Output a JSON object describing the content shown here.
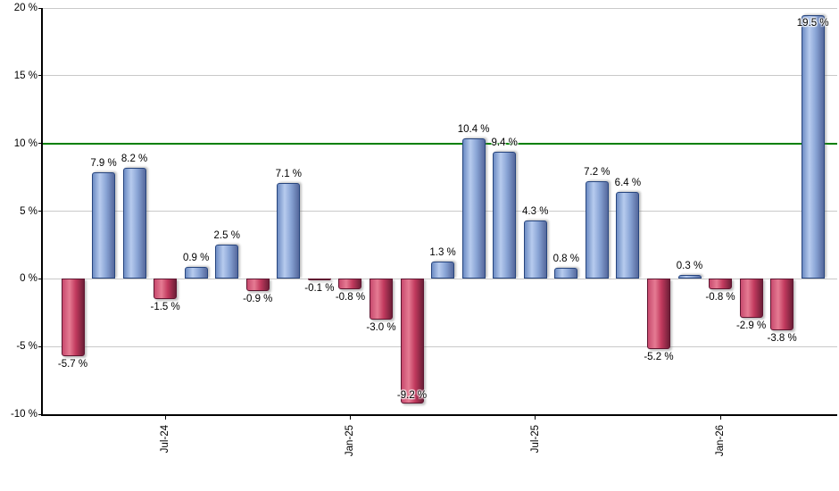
{
  "chart_data": {
    "type": "bar",
    "title": "",
    "xlabel": "",
    "ylabel": "",
    "unit": "%",
    "ylim": [
      -10,
      20
    ],
    "grid": true,
    "legend": null,
    "y_ticks": [
      {
        "value": 20,
        "label": "20 %"
      },
      {
        "value": 15,
        "label": "15 %"
      },
      {
        "value": 10,
        "label": "10 %"
      },
      {
        "value": 5,
        "label": "5 %"
      },
      {
        "value": 0,
        "label": "0 %"
      },
      {
        "value": -5,
        "label": "-5 %"
      },
      {
        "value": -10,
        "label": "-10 %"
      }
    ],
    "reference_line": {
      "value": 10,
      "color": "#008000"
    },
    "values": [
      -5.7,
      7.9,
      8.2,
      -1.5,
      0.9,
      2.5,
      -0.9,
      7.1,
      -0.1,
      -0.8,
      -3.0,
      -9.2,
      1.3,
      10.4,
      9.4,
      4.3,
      0.8,
      7.2,
      6.4,
      -5.2,
      0.3,
      -0.8,
      -2.9,
      -3.8,
      19.5
    ],
    "value_labels": [
      "-5.7 %",
      "7.9 %",
      "8.2 %",
      "-1.5 %",
      "0.9 %",
      "2.5 %",
      "-0.9 %",
      "7.1 %",
      "-0.1 %",
      "-0.8 %",
      "-3.0 %",
      "-9.2 %",
      "1.3 %",
      "10.4 %",
      "9.4 %",
      "4.3 %",
      "0.8 %",
      "7.2 %",
      "6.4 %",
      "-5.2 %",
      "0.3 %",
      "-0.8 %",
      "-2.9 %",
      "-3.8 %",
      "19.5 %"
    ],
    "x_ticks": [
      {
        "index": 3,
        "label": "Jul-24"
      },
      {
        "index": 9,
        "label": "Jan-25"
      },
      {
        "index": 15,
        "label": "Jul-25"
      },
      {
        "index": 21,
        "label": "Jan-26"
      }
    ],
    "colors": {
      "positive_gradient": [
        "#6d8cc4",
        "#b7cbee",
        "#8aa5d6",
        "#55689c"
      ],
      "negative_gradient": [
        "#c84a6e",
        "#e57b93",
        "#c23a5e",
        "#6e1f38"
      ],
      "positive_border": "#27457e",
      "negative_border": "#5f1530",
      "grid": "#c9c9c9",
      "axis": "#000000",
      "reference": "#008000",
      "label_text": "#000000"
    }
  }
}
